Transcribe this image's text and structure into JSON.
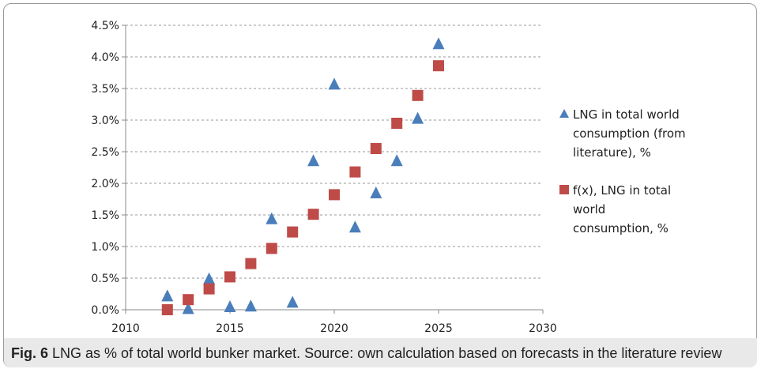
{
  "caption": {
    "label": "Fig. 6",
    "text": "LNG as % of total world bunker market. Source: own calculation based on forecasts in the literature review"
  },
  "chart_data": {
    "type": "scatter",
    "xlim": [
      2010,
      2030
    ],
    "ylim": [
      0,
      0.045
    ],
    "x_ticks": [
      2010,
      2015,
      2020,
      2025,
      2030
    ],
    "y_ticks": [
      0,
      0.005,
      0.01,
      0.015,
      0.02,
      0.025,
      0.03,
      0.035,
      0.04,
      0.045
    ],
    "x_tick_labels": [
      "2010",
      "2015",
      "2020",
      "2025",
      "2030"
    ],
    "y_tick_labels": [
      "0.0%",
      "0.5%",
      "1.0%",
      "1.5%",
      "2.0%",
      "2.5%",
      "3.0%",
      "3.5%",
      "4.0%",
      "4.5%"
    ],
    "grid": "horizontal-dashed",
    "legend_position": "right",
    "series": [
      {
        "name": "LNG in total world consumption (from literature), %",
        "legend_lines": [
          "LNG in total world",
          "consumption (from",
          "literature), %"
        ],
        "marker": "triangle",
        "color": "#4a7ebb",
        "points": [
          {
            "x": 2012,
            "y": 0.0022
          },
          {
            "x": 2013,
            "y": 0.0002
          },
          {
            "x": 2014,
            "y": 0.0049
          },
          {
            "x": 2015,
            "y": 0.0005
          },
          {
            "x": 2016,
            "y": 0.0006
          },
          {
            "x": 2017,
            "y": 0.0144
          },
          {
            "x": 2018,
            "y": 0.0012
          },
          {
            "x": 2019,
            "y": 0.0236
          },
          {
            "x": 2020,
            "y": 0.0357
          },
          {
            "x": 2021,
            "y": 0.0131
          },
          {
            "x": 2022,
            "y": 0.0185
          },
          {
            "x": 2023,
            "y": 0.0236
          },
          {
            "x": 2024,
            "y": 0.0303
          },
          {
            "x": 2025,
            "y": 0.0421
          }
        ]
      },
      {
        "name": "f(x), LNG in total world consumption, %",
        "legend_lines": [
          "f(x), LNG in total",
          "world",
          "consumption, %"
        ],
        "marker": "square",
        "color": "#be4b48",
        "points": [
          {
            "x": 2012,
            "y": 0.0
          },
          {
            "x": 2013,
            "y": 0.0016
          },
          {
            "x": 2014,
            "y": 0.0033
          },
          {
            "x": 2015,
            "y": 0.0052
          },
          {
            "x": 2016,
            "y": 0.0073
          },
          {
            "x": 2017,
            "y": 0.0097
          },
          {
            "x": 2018,
            "y": 0.0123
          },
          {
            "x": 2019,
            "y": 0.0151
          },
          {
            "x": 2020,
            "y": 0.0182
          },
          {
            "x": 2021,
            "y": 0.0218
          },
          {
            "x": 2022,
            "y": 0.0255
          },
          {
            "x": 2023,
            "y": 0.0295
          },
          {
            "x": 2024,
            "y": 0.0339
          },
          {
            "x": 2025,
            "y": 0.0386
          }
        ]
      }
    ]
  }
}
